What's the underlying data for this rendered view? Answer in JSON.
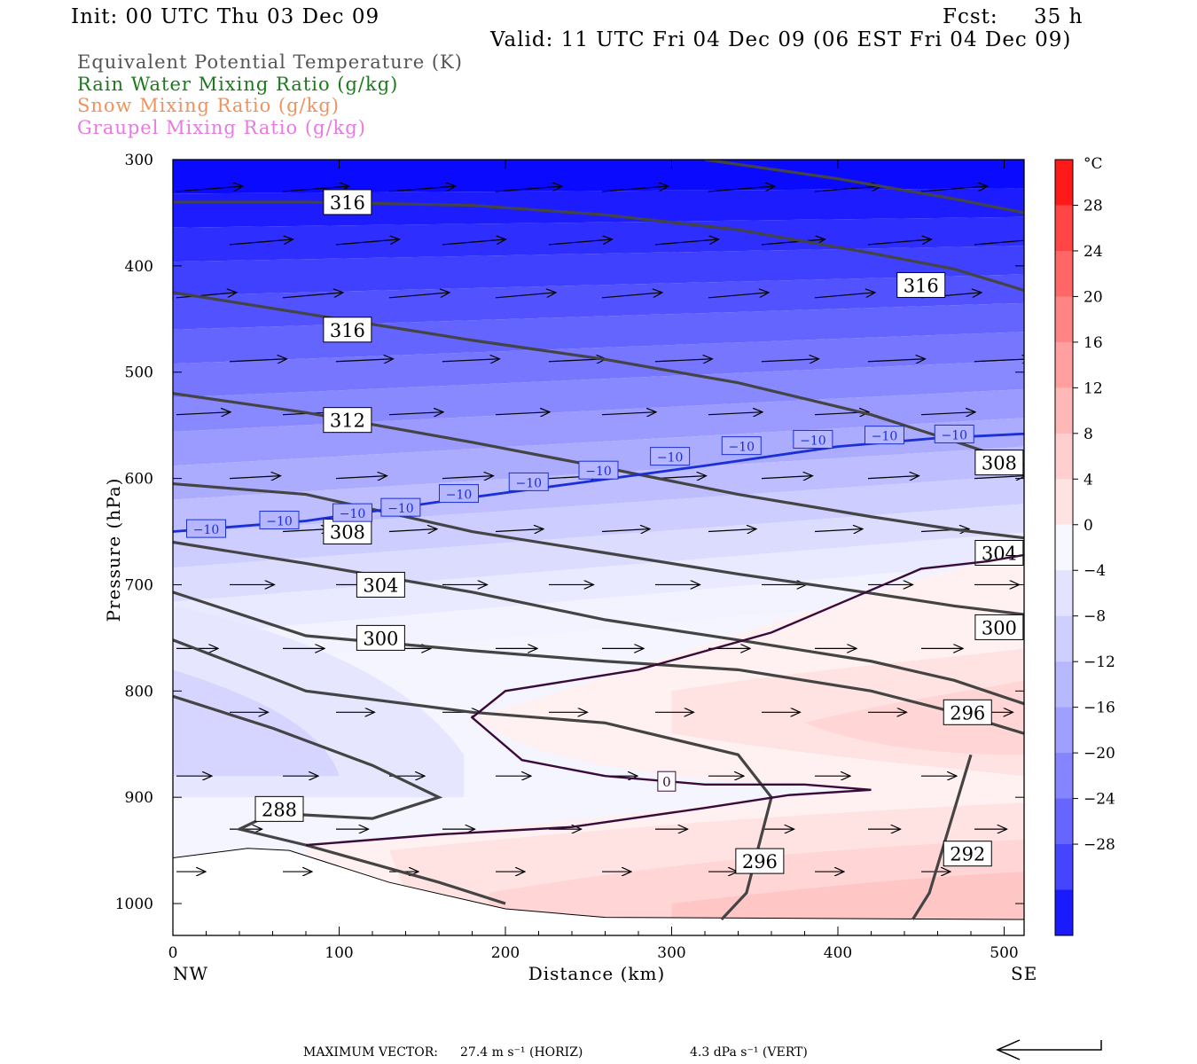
{
  "header": {
    "init": "Init: 00 UTC Thu 03 Dec 09",
    "fcst_label": "Fcst:",
    "fcst_value": "35 h",
    "valid": "Valid: 11 UTC Fri 04 Dec 09 (06 EST Fri 04 Dec 09)"
  },
  "legend": [
    {
      "text": "Equivalent Potential Temperature (K)",
      "color": "#555555"
    },
    {
      "text": "Rain Water Mixing Ratio (g/kg)",
      "color": "#1a7a1a"
    },
    {
      "text": "Snow Mixing Ratio (g/kg)",
      "color": "#f0925c"
    },
    {
      "text": "Graupel Mixing Ratio (g/kg)",
      "color": "#e57ae0"
    }
  ],
  "colorbar": {
    "unit": "°C",
    "labels": [
      "28",
      "24",
      "20",
      "16",
      "12",
      "8",
      "4",
      "0",
      "−4",
      "−8",
      "−12",
      "−16",
      "−20",
      "−24",
      "−28"
    ],
    "colors": [
      "#ff1a1a",
      "#ff4545",
      "#ff6666",
      "#ff8585",
      "#ff9f9f",
      "#ffb8b8",
      "#ffcfcf",
      "#ffe3e3",
      "#f7f7ff",
      "#e3e3ff",
      "#cfcfff",
      "#b8b8ff",
      "#9f9fff",
      "#8585ff",
      "#6666ff",
      "#4545ff",
      "#1a1aff"
    ]
  },
  "footer": {
    "max_vector_label": "MAXIMUM VECTOR:",
    "horiz": "27.4 m s⁻¹ (HORIZ)",
    "vert": "4.3 dPa s⁻¹ (VERT)"
  },
  "chart_data": {
    "type": "contour",
    "ylabel": "Pressure (hPa)",
    "xlabel": "Distance (km)",
    "x_ticks": [
      0,
      100,
      200,
      300,
      400,
      500
    ],
    "y_ticks": [
      300,
      400,
      500,
      600,
      700,
      800,
      900,
      1000
    ],
    "x_range": [
      0,
      512
    ],
    "y_range": [
      300,
      1030
    ],
    "left_end_label": "NW",
    "right_end_label": "SE",
    "theta_e_contours": [
      {
        "level": "316",
        "points": [
          [
            0,
            340
          ],
          [
            80,
            340
          ],
          [
            180,
            343
          ],
          [
            260,
            352
          ],
          [
            340,
            366
          ],
          [
            420,
            388
          ],
          [
            470,
            403
          ],
          [
            512,
            423
          ]
        ]
      },
      {
        "level": "316",
        "points": [
          [
            320,
            300
          ],
          [
            400,
            318
          ],
          [
            470,
            337
          ],
          [
            512,
            350
          ]
        ]
      },
      {
        "level": "312",
        "points": [
          [
            0,
            425
          ],
          [
            80,
            445
          ],
          [
            180,
            470
          ],
          [
            260,
            488
          ],
          [
            340,
            510
          ],
          [
            420,
            540
          ],
          [
            470,
            565
          ],
          [
            512,
            587
          ]
        ]
      },
      {
        "level": "308",
        "points": [
          [
            0,
            520
          ],
          [
            80,
            538
          ],
          [
            180,
            566
          ],
          [
            260,
            590
          ],
          [
            340,
            615
          ],
          [
            420,
            636
          ],
          [
            470,
            648
          ],
          [
            512,
            656
          ]
        ]
      },
      {
        "level": "304",
        "points": [
          [
            0,
            605
          ],
          [
            80,
            615
          ],
          [
            180,
            650
          ],
          [
            260,
            670
          ],
          [
            340,
            690
          ],
          [
            420,
            708
          ],
          [
            470,
            720
          ],
          [
            512,
            728
          ]
        ]
      },
      {
        "level": "300",
        "points": [
          [
            0,
            660
          ],
          [
            80,
            680
          ],
          [
            180,
            707
          ],
          [
            260,
            733
          ],
          [
            340,
            752
          ],
          [
            420,
            772
          ],
          [
            470,
            790
          ],
          [
            512,
            812
          ]
        ]
      },
      {
        "level": "296",
        "points": [
          [
            0,
            707
          ],
          [
            80,
            748
          ],
          [
            180,
            762
          ],
          [
            260,
            772
          ],
          [
            340,
            780
          ],
          [
            420,
            800
          ],
          [
            470,
            820
          ],
          [
            512,
            840
          ]
        ]
      },
      {
        "level": "296",
        "points": [
          [
            480,
            860
          ],
          [
            455,
            990
          ],
          [
            445,
            1015
          ]
        ]
      },
      {
        "level": "292",
        "points": [
          [
            0,
            752
          ],
          [
            80,
            800
          ],
          [
            180,
            820
          ],
          [
            260,
            830
          ],
          [
            340,
            860
          ],
          [
            360,
            900
          ],
          [
            345,
            990
          ],
          [
            330,
            1015
          ]
        ]
      },
      {
        "level": "288",
        "points": [
          [
            0,
            805
          ],
          [
            60,
            835
          ],
          [
            120,
            870
          ],
          [
            160,
            900
          ],
          [
            120,
            920
          ],
          [
            60,
            915
          ],
          [
            40,
            930
          ],
          [
            80,
            945
          ],
          [
            160,
            980
          ],
          [
            200,
            1000
          ]
        ]
      }
    ],
    "temperature_contours": [
      {
        "level": "-10",
        "points": [
          [
            0,
            650
          ],
          [
            80,
            640
          ],
          [
            160,
            622
          ],
          [
            240,
            605
          ],
          [
            320,
            588
          ],
          [
            400,
            570
          ],
          [
            460,
            562
          ],
          [
            512,
            558
          ]
        ]
      },
      {
        "level": "0",
        "points": [
          [
            512,
            672
          ],
          [
            490,
            678
          ],
          [
            450,
            685
          ],
          [
            360,
            745
          ],
          [
            280,
            780
          ],
          [
            200,
            800
          ],
          [
            180,
            825
          ],
          [
            210,
            865
          ],
          [
            260,
            880
          ],
          [
            320,
            888
          ],
          [
            380,
            888
          ],
          [
            420,
            893
          ],
          [
            370,
            898
          ],
          [
            320,
            910
          ],
          [
            240,
            928
          ],
          [
            160,
            935
          ],
          [
            80,
            945
          ]
        ]
      }
    ]
  }
}
